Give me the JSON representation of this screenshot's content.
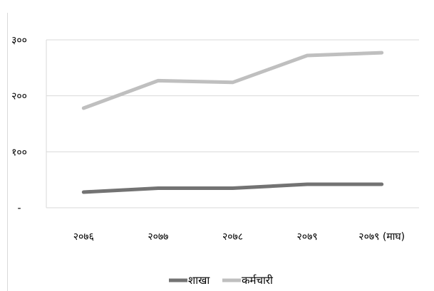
{
  "chart_data": {
    "type": "line",
    "categories": [
      "२०७६",
      "२०७७",
      "२०७८",
      "२०७९",
      "२०७९ (माघ)"
    ],
    "series": [
      {
        "name": "शाखा",
        "values": [
          28,
          35,
          35,
          42,
          42
        ],
        "color": "#737373"
      },
      {
        "name": "कर्मचारी",
        "values": [
          178,
          227,
          224,
          272,
          277
        ],
        "color": "#bfbfbf"
      }
    ],
    "y_ticks": [
      {
        "value": 0,
        "label": "-"
      },
      {
        "value": 100,
        "label": "१००"
      },
      {
        "value": 200,
        "label": "२००"
      },
      {
        "value": 300,
        "label": "३००"
      }
    ],
    "ylim": [
      0,
      300
    ],
    "gridlines": true,
    "legend_position": "bottom"
  }
}
